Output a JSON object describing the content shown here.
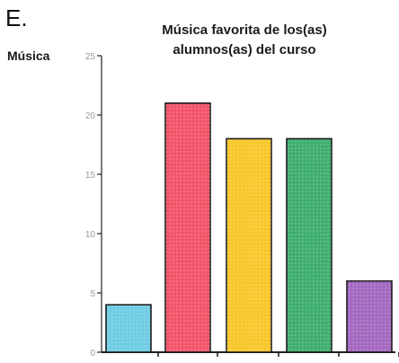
{
  "panel_label": "E.",
  "chart_data": {
    "type": "bar",
    "title": "Música favorita de los(as) alumnos(as) del curso",
    "title_lines": [
      "Música favorita de los(as)",
      "alumnos(as) del curso"
    ],
    "xlabel": "",
    "ylabel": "Música",
    "categories": [
      "",
      "",
      "",
      "",
      ""
    ],
    "values": [
      4,
      21,
      18,
      18,
      6
    ],
    "ylim": [
      0,
      25
    ],
    "yticks": [
      0,
      5,
      10,
      15,
      20,
      25
    ],
    "grid": false,
    "legend": "none",
    "colors": [
      "#6fcde3",
      "#f2556a",
      "#f9c72c",
      "#3fae6e",
      "#a469c0"
    ]
  }
}
